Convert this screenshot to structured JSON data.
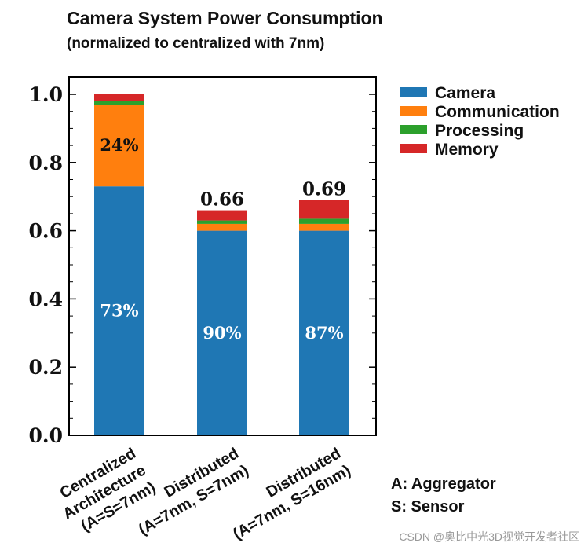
{
  "chart_data": {
    "type": "bar",
    "title": "Camera System Power Consumption",
    "subtitle": "(normalized to centralized with 7nm)",
    "ylim": [
      0.0,
      1.0
    ],
    "yticks": [
      "0.0",
      "0.2",
      "0.4",
      "0.6",
      "0.8",
      "1.0"
    ],
    "categories": [
      [
        "Centralized",
        "Architecture",
        "(A=S=7nm)"
      ],
      [
        "Distributed",
        "(A=7nm, S=7nm)"
      ],
      [
        "Distributed",
        "(A=7nm, S=16nm)"
      ]
    ],
    "series": [
      {
        "name": "Camera",
        "color": "#1f77b4",
        "values": [
          0.73,
          0.6,
          0.6
        ]
      },
      {
        "name": "Communication",
        "color": "#ff7f0e",
        "values": [
          0.24,
          0.02,
          0.02
        ]
      },
      {
        "name": "Processing",
        "color": "#2ca02c",
        "values": [
          0.01,
          0.01,
          0.015
        ]
      },
      {
        "name": "Memory",
        "color": "#d62728",
        "values": [
          0.02,
          0.03,
          0.055
        ]
      }
    ],
    "annotations": {
      "camera_share": [
        "73%",
        "90%",
        "87%"
      ],
      "communication_share": "24%",
      "totals": [
        "",
        "0.66",
        "0.69"
      ]
    },
    "legend_position": "right"
  },
  "notes": {
    "line_a": "A: Aggregator",
    "line_s": "S: Sensor"
  },
  "watermark": "CSDN @奥比中光3D视觉开发者社区"
}
